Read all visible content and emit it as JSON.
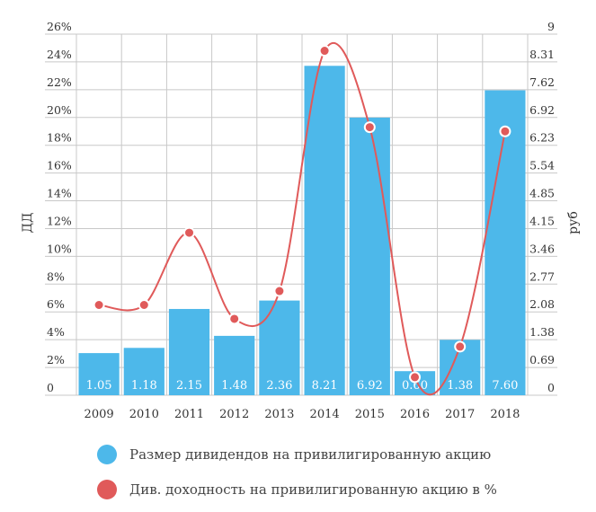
{
  "chart_data": {
    "type": "bar",
    "categories": [
      "2009",
      "2010",
      "2011",
      "2012",
      "2013",
      "2014",
      "2015",
      "2016",
      "2017",
      "2018"
    ],
    "series": [
      {
        "name": "Размер дивидендов на привилигированную акцию",
        "type": "bar",
        "axis": "right",
        "values": [
          1.05,
          1.18,
          2.15,
          1.48,
          2.36,
          8.21,
          6.92,
          0.6,
          1.38,
          7.6
        ],
        "labels": [
          "1.05",
          "1.18",
          "2.15",
          "1.48",
          "2.36",
          "8.21",
          "6.92",
          "0.60",
          "1.38",
          "7.60"
        ],
        "color": "#4db8ea"
      },
      {
        "name": "Див. доходность на привилигированную акцию в %",
        "type": "line",
        "axis": "left",
        "values": [
          6.5,
          6.5,
          11.7,
          5.5,
          7.5,
          24.8,
          19.3,
          1.3,
          3.5,
          19.0
        ],
        "color": "#e05a5a"
      }
    ],
    "ylabel": "ДД",
    "y2label": "руб",
    "ylim": [
      0,
      26
    ],
    "y2lim": [
      0,
      9
    ],
    "yticks": [
      "0",
      "2%",
      "4%",
      "6%",
      "8%",
      "10%",
      "12%",
      "14%",
      "16%",
      "18%",
      "20%",
      "22%",
      "24%",
      "26%"
    ],
    "y2ticks": [
      "0",
      "0.69",
      "1.38",
      "2.08",
      "2.77",
      "3.46",
      "4.15",
      "4.85",
      "5.54",
      "6.23",
      "6.92",
      "7.62",
      "8.31",
      "9"
    ],
    "grid": true,
    "legend": "bottom"
  },
  "colors": {
    "bar": "#4db8ea",
    "line": "#e05a5a",
    "grid": "#c8c8c8",
    "text": "#333333"
  }
}
